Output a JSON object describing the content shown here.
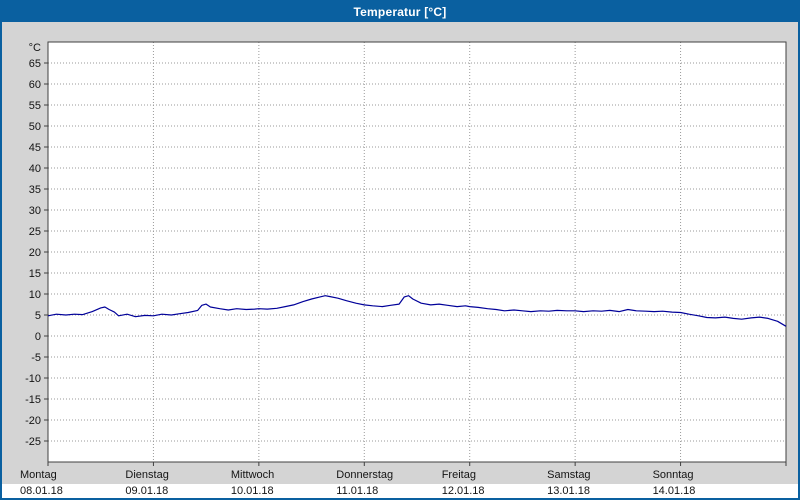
{
  "window": {
    "title": "Temperatur [°C]",
    "accent_color": "#0a60a0"
  },
  "chart_data": {
    "type": "line",
    "title": "Temperatur [°C]",
    "xlabel": "",
    "ylabel": "°C",
    "ylim": [
      -30,
      70
    ],
    "y_ticks": [
      65,
      60,
      55,
      50,
      45,
      40,
      35,
      30,
      25,
      20,
      15,
      10,
      5,
      0,
      -5,
      -10,
      -15,
      -20,
      -25
    ],
    "x_range_days": [
      0,
      7
    ],
    "x_days": [
      {
        "name": "Montag",
        "date": "08.01.18"
      },
      {
        "name": "Dienstag",
        "date": "09.01.18"
      },
      {
        "name": "Mittwoch",
        "date": "10.01.18"
      },
      {
        "name": "Donnerstag",
        "date": "11.01.18"
      },
      {
        "name": "Freitag",
        "date": "12.01.18"
      },
      {
        "name": "Samstag",
        "date": "13.01.18"
      },
      {
        "name": "Sonntag",
        "date": "14.01.18"
      }
    ],
    "grid": "dotted",
    "legend": "none",
    "line_color": "#000099",
    "plot_bg": "#ffffff",
    "grid_color": "#9a9a9a",
    "series": [
      {
        "name": "Temperatur",
        "points": [
          [
            0.0,
            4.8
          ],
          [
            0.08,
            5.2
          ],
          [
            0.17,
            5.0
          ],
          [
            0.25,
            5.2
          ],
          [
            0.33,
            5.1
          ],
          [
            0.42,
            5.8
          ],
          [
            0.5,
            6.7
          ],
          [
            0.54,
            6.9
          ],
          [
            0.58,
            6.3
          ],
          [
            0.63,
            5.7
          ],
          [
            0.67,
            4.8
          ],
          [
            0.75,
            5.2
          ],
          [
            0.83,
            4.6
          ],
          [
            0.92,
            4.9
          ],
          [
            1.0,
            4.8
          ],
          [
            1.08,
            5.2
          ],
          [
            1.17,
            5.0
          ],
          [
            1.25,
            5.3
          ],
          [
            1.33,
            5.6
          ],
          [
            1.42,
            6.1
          ],
          [
            1.46,
            7.3
          ],
          [
            1.5,
            7.6
          ],
          [
            1.54,
            6.9
          ],
          [
            1.63,
            6.5
          ],
          [
            1.71,
            6.2
          ],
          [
            1.79,
            6.5
          ],
          [
            1.88,
            6.3
          ],
          [
            1.96,
            6.4
          ],
          [
            2.0,
            6.5
          ],
          [
            2.08,
            6.4
          ],
          [
            2.17,
            6.6
          ],
          [
            2.25,
            7.0
          ],
          [
            2.33,
            7.4
          ],
          [
            2.42,
            8.2
          ],
          [
            2.5,
            8.8
          ],
          [
            2.58,
            9.3
          ],
          [
            2.63,
            9.6
          ],
          [
            2.67,
            9.4
          ],
          [
            2.75,
            9.0
          ],
          [
            2.83,
            8.4
          ],
          [
            2.92,
            7.8
          ],
          [
            3.0,
            7.4
          ],
          [
            3.08,
            7.2
          ],
          [
            3.17,
            7.0
          ],
          [
            3.25,
            7.3
          ],
          [
            3.33,
            7.6
          ],
          [
            3.38,
            9.3
          ],
          [
            3.42,
            9.6
          ],
          [
            3.46,
            8.8
          ],
          [
            3.54,
            7.8
          ],
          [
            3.63,
            7.4
          ],
          [
            3.71,
            7.6
          ],
          [
            3.79,
            7.3
          ],
          [
            3.88,
            7.0
          ],
          [
            3.96,
            7.2
          ],
          [
            4.0,
            7.0
          ],
          [
            4.08,
            6.8
          ],
          [
            4.17,
            6.5
          ],
          [
            4.25,
            6.3
          ],
          [
            4.33,
            6.0
          ],
          [
            4.42,
            6.2
          ],
          [
            4.5,
            6.0
          ],
          [
            4.58,
            5.8
          ],
          [
            4.67,
            6.0
          ],
          [
            4.75,
            5.9
          ],
          [
            4.83,
            6.1
          ],
          [
            4.92,
            6.0
          ],
          [
            5.0,
            6.0
          ],
          [
            5.08,
            5.8
          ],
          [
            5.17,
            6.0
          ],
          [
            5.25,
            5.9
          ],
          [
            5.33,
            6.1
          ],
          [
            5.42,
            5.8
          ],
          [
            5.5,
            6.3
          ],
          [
            5.58,
            6.0
          ],
          [
            5.67,
            5.9
          ],
          [
            5.75,
            5.8
          ],
          [
            5.83,
            5.9
          ],
          [
            5.92,
            5.7
          ],
          [
            6.0,
            5.6
          ],
          [
            6.08,
            5.2
          ],
          [
            6.17,
            4.8
          ],
          [
            6.25,
            4.4
          ],
          [
            6.33,
            4.3
          ],
          [
            6.42,
            4.5
          ],
          [
            6.5,
            4.2
          ],
          [
            6.58,
            4.0
          ],
          [
            6.67,
            4.3
          ],
          [
            6.75,
            4.5
          ],
          [
            6.83,
            4.2
          ],
          [
            6.92,
            3.5
          ],
          [
            7.0,
            2.3
          ]
        ]
      }
    ]
  }
}
